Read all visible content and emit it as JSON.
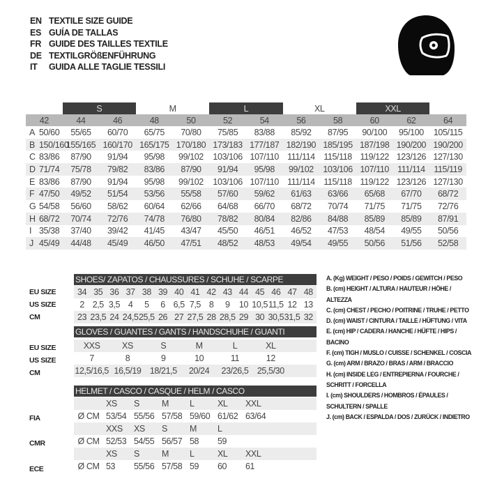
{
  "titles": [
    {
      "code": "EN",
      "text": "TEXTILE SIZE GUIDE"
    },
    {
      "code": "ES",
      "text": "GUÍA DE TALLAS"
    },
    {
      "code": "FR",
      "text": "GUIDE DES TAILLES TEXTILE"
    },
    {
      "code": "DE",
      "text": "TEXTILGRÖßENFÜHRUNG"
    },
    {
      "code": "IT",
      "text": "GUIDA ALLE TAGLIE TESSILI"
    }
  ],
  "icon": "helmet-icon",
  "textile": {
    "groups": [
      {
        "label": "",
        "span": 1,
        "dark": false
      },
      {
        "label": "S",
        "span": 2,
        "dark": true
      },
      {
        "label": "M",
        "span": 2,
        "dark": false
      },
      {
        "label": "L",
        "span": 2,
        "dark": true
      },
      {
        "label": "XL",
        "span": 2,
        "dark": false
      },
      {
        "label": "XXL",
        "span": 2,
        "dark": true
      },
      {
        "label": "",
        "span": 1,
        "dark": false
      }
    ],
    "columns": [
      "42",
      "44",
      "46",
      "48",
      "50",
      "52",
      "54",
      "56",
      "58",
      "60",
      "62",
      "64"
    ],
    "rows": [
      {
        "key": "A",
        "values": [
          "50/60",
          "55/65",
          "60/70",
          "65/75",
          "70/80",
          "75/85",
          "83/88",
          "85/92",
          "87/95",
          "90/100",
          "95/100",
          "105/115"
        ]
      },
      {
        "key": "B",
        "values": [
          "150/160",
          "155/165",
          "160/170",
          "165/175",
          "170/180",
          "173/183",
          "177/187",
          "182/190",
          "185/195",
          "187/198",
          "190/200",
          "190/200"
        ]
      },
      {
        "key": "C",
        "values": [
          "83/86",
          "87/90",
          "91/94",
          "95/98",
          "99/102",
          "103/106",
          "107/110",
          "111/114",
          "115/118",
          "119/122",
          "123/126",
          "127/130"
        ]
      },
      {
        "key": "D",
        "values": [
          "71/74",
          "75/78",
          "79/82",
          "83/86",
          "87/90",
          "91/94",
          "95/98",
          "99/102",
          "103/106",
          "107/110",
          "111/114",
          "115/119"
        ]
      },
      {
        "key": "E",
        "values": [
          "83/86",
          "87/90",
          "91/94",
          "95/98",
          "99/102",
          "103/106",
          "107/110",
          "111/114",
          "115/118",
          "119/122",
          "123/126",
          "127/130"
        ]
      },
      {
        "key": "F",
        "values": [
          "47/50",
          "49/52",
          "51/54",
          "53/56",
          "55/58",
          "57/60",
          "59/62",
          "61/63",
          "63/66",
          "65/68",
          "67/70",
          "68/72"
        ]
      },
      {
        "key": "G",
        "values": [
          "54/58",
          "56/60",
          "58/62",
          "60/64",
          "62/66",
          "64/68",
          "66/70",
          "68/72",
          "70/74",
          "71/75",
          "71/75",
          "72/76"
        ]
      },
      {
        "key": "H",
        "values": [
          "68/72",
          "70/74",
          "72/76",
          "74/78",
          "76/80",
          "78/82",
          "80/84",
          "82/86",
          "84/88",
          "85/89",
          "85/89",
          "87/91"
        ]
      },
      {
        "key": "I",
        "values": [
          "35/38",
          "37/40",
          "39/42",
          "41/45",
          "43/47",
          "45/50",
          "46/51",
          "46/52",
          "47/53",
          "48/54",
          "49/55",
          "50/56"
        ]
      },
      {
        "key": "J",
        "values": [
          "45/49",
          "44/48",
          "45/49",
          "46/50",
          "47/51",
          "48/52",
          "48/53",
          "49/54",
          "49/55",
          "50/56",
          "51/56",
          "52/58"
        ]
      }
    ]
  },
  "shoes": {
    "title": "SHOES/ ZAPATOS / CHAUSSURES / SCHUHE / SCARPE",
    "rows": [
      {
        "label": "EU SIZE",
        "values": [
          "34",
          "35",
          "36",
          "37",
          "38",
          "39",
          "40",
          "41",
          "42",
          "43",
          "44",
          "45",
          "46",
          "47",
          "48"
        ]
      },
      {
        "label": "US SIZE",
        "values": [
          "2",
          "2,5",
          "3,5",
          "4",
          "5",
          "6",
          "6,5",
          "7,5",
          "8",
          "9",
          "10",
          "10,5",
          "11,5",
          "12",
          "13"
        ]
      },
      {
        "label": "CM",
        "values": [
          "23",
          "23,5",
          "24",
          "24,5",
          "25,5",
          "26",
          "27",
          "27,5",
          "28",
          "28,5",
          "29",
          "30",
          "30,5",
          "31,5",
          "32"
        ]
      }
    ]
  },
  "gloves": {
    "title": "GLOVES / GUANTES / GANTS / HANDSCHUHE / GUANTI",
    "rows": [
      {
        "label": "EU SIZE",
        "values": [
          "XXS",
          "XS",
          "S",
          "M",
          "L",
          "XL"
        ]
      },
      {
        "label": "US SIZE",
        "values": [
          "7",
          "8",
          "9",
          "10",
          "11",
          "12"
        ]
      },
      {
        "label": "CM",
        "values": [
          "12,5/16,5",
          "16,5/19",
          "18/21,5",
          "20/24",
          "23/26,5",
          "25,5/30"
        ]
      }
    ]
  },
  "helmet": {
    "title": "HELMET / CASCO / CASQUE / HELM / CASCO",
    "unit": "Ø CM",
    "standards": [
      {
        "label": "FIA",
        "sizes": [
          "XS",
          "S",
          "M",
          "L",
          "XL",
          "XXL"
        ],
        "values": [
          "53/54",
          "55/56",
          "57/58",
          "59/60",
          "61/62",
          "63/64"
        ]
      },
      {
        "label": "CMR",
        "sizes": [
          "XXS",
          "XS",
          "S",
          "M",
          "L"
        ],
        "values": [
          "52/53",
          "54/55",
          "56/57",
          "58",
          "59"
        ]
      },
      {
        "label": "ECE",
        "sizes": [
          "XS",
          "S",
          "M",
          "L",
          "XL",
          "XXL"
        ],
        "values": [
          "53",
          "55/56",
          "57/58",
          "59",
          "60",
          "61"
        ]
      }
    ]
  },
  "legend": [
    "A. (Kg) WEIGHT / PESO / POIDS / GEWITCH / PESO",
    "B. (cm) HEIGHT / ALTURA / HAUTEUR / HÖHE / ALTEZZA",
    "C. (cm) CHEST / PECHO / POITRINE / TRUHE / PETTO",
    "D. (cm) WAIST / CINTURA / TAILLE / HÜFTUNG / VITA",
    "E. (cm) HIP / CADERA / HANCHE / HÜFTE / HIPS / BACINO",
    "F. (cm) TIGH / MUSLO / CUISSE / SCHENKEL / COSCIA",
    "G. (cm) ARM / BRAZO / BRAS / ARM / BRACCIO",
    "H. (cm) INSIDE LEG / ENTREPIERNA / FOURCHE /",
    "SCHRITT / FORCELLA",
    "I. (cm) SHOULDERS / HOMBROS / ÉPAULES /",
    "SCHULTERN / SPALLE",
    "J. (cm) BACK / ESPALDA / DOS / ZURÜCK / INDIETRO"
  ]
}
